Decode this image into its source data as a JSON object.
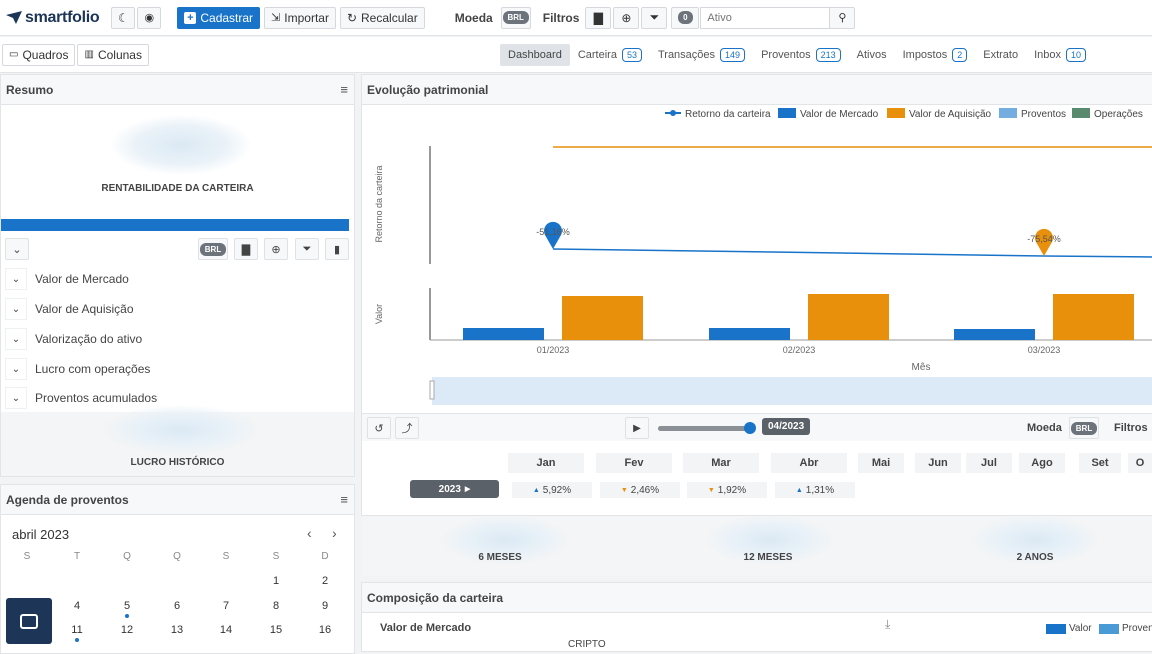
{
  "app": {
    "logo_text": "smartfolio"
  },
  "toolbar": {
    "cadastrar": "Cadastrar",
    "importar": "Importar",
    "recalcular": "Recalcular",
    "moeda_label": "Moeda",
    "moeda_value": "BRL",
    "filtros_label": "Filtros",
    "filter_count": "0",
    "search_placeholder": "Ativo"
  },
  "layout_buttons": {
    "quadros": "Quadros",
    "colunas": "Colunas"
  },
  "tabs": [
    {
      "label": "Dashboard",
      "count": ""
    },
    {
      "label": "Carteira",
      "count": "53"
    },
    {
      "label": "Transações",
      "count": "149"
    },
    {
      "label": "Proventos",
      "count": "213"
    },
    {
      "label": "Ativos",
      "count": ""
    },
    {
      "label": "Impostos",
      "count": "2"
    },
    {
      "label": "Extrato",
      "count": ""
    },
    {
      "label": "Inbox",
      "count": "10"
    }
  ],
  "resumo": {
    "title": "Resumo",
    "rentabilidade": "RENTABILIDADE DA CARTEIRA",
    "currency": "BRL",
    "rows": [
      "Valor de Mercado",
      "Valor de Aquisição",
      "Valorização do ativo",
      "Lucro com operações",
      "Proventos acumulados"
    ],
    "lucro": "LUCRO HISTÓRICO"
  },
  "agenda": {
    "title": "Agenda de proventos",
    "month": "abril 2023",
    "dow": [
      "S",
      "T",
      "Q",
      "Q",
      "S",
      "S",
      "D"
    ],
    "week1": [
      "1",
      "2"
    ],
    "week2": [
      "4",
      "5",
      "6",
      "7",
      "8",
      "9"
    ],
    "week3": [
      "11",
      "12",
      "13",
      "14",
      "15",
      "16"
    ]
  },
  "evolucao": {
    "title": "Evolução patrimonial",
    "legend": [
      "Retorno da carteira",
      "Valor de Mercado",
      "Valor de Aquisição",
      "Proventos",
      "Operações"
    ],
    "colors": {
      "retorno": "#1873c9",
      "mercado": "#1873c9",
      "aquisicao": "#e8900c",
      "proventos": "#74aee0",
      "operacoes": "#5a8a6e"
    },
    "ylabel_top": "Retorno da carteira",
    "ylabel_bottom": "Valor",
    "xlabel": "Mês",
    "annotation1": "-51,16%",
    "annotation2": "-75,54%",
    "moeda_label": "Moeda",
    "moeda_value": "BRL",
    "filtros_label": "Filtros",
    "slider_date": "04/2023",
    "slider_progress": 1.0
  },
  "chart_data": {
    "type": "bar",
    "categories": [
      "01/2023",
      "02/2023",
      "03/2023"
    ],
    "series": [
      {
        "name": "Valor de Mercado",
        "values": [
          12,
          12,
          11
        ]
      },
      {
        "name": "Valor de Aquisição",
        "values": [
          44,
          46,
          46
        ]
      }
    ],
    "line_series": {
      "name": "Retorno da carteira",
      "values": [
        -51.16,
        -63,
        -75.54
      ]
    },
    "xlabel": "Mês",
    "ylabel": "Valor"
  },
  "monthly": {
    "year": "2023",
    "months": [
      "Jan",
      "Fev",
      "Mar",
      "Abr",
      "Mai",
      "Jun",
      "Jul",
      "Ago",
      "Set",
      "O"
    ],
    "values": [
      {
        "dir": "up",
        "text": "5,92%"
      },
      {
        "dir": "down",
        "text": "2,46%"
      },
      {
        "dir": "down",
        "text": "1,92%"
      },
      {
        "dir": "up",
        "text": "1,31%"
      }
    ],
    "periods": [
      "6 MESES",
      "12 MESES",
      "2 ANOS"
    ]
  },
  "composicao": {
    "title": "Composição da carteira",
    "subtitle": "Valor de Mercado",
    "legend": [
      "Valor",
      "Proven"
    ],
    "first_label": "CRIPTO"
  }
}
